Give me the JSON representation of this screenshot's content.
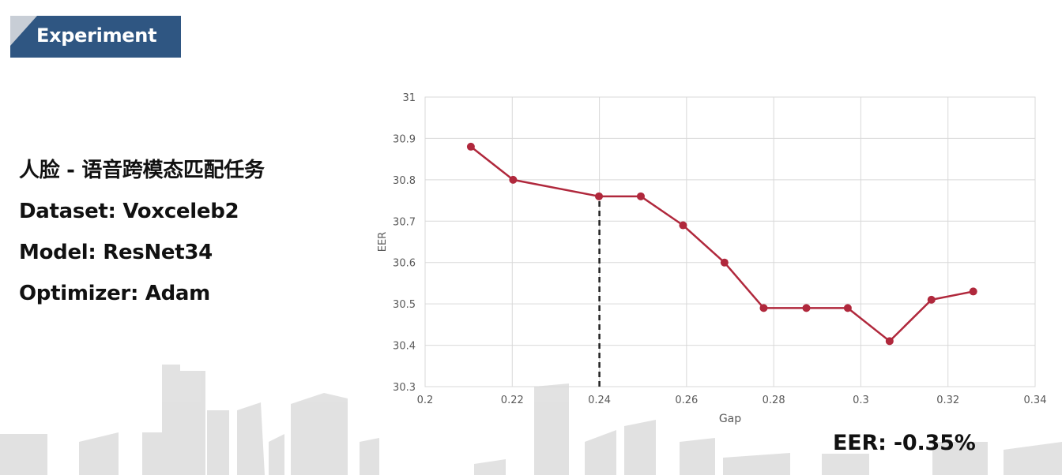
{
  "slide": {
    "section_title": "Experiment",
    "info_lines": [
      "人脸 - 语音跨模态匹配任务",
      "Dataset: Voxceleb2",
      "Model: ResNet34",
      "Optimizer: Adam"
    ],
    "result_text": "EER: -0.35%"
  },
  "colors": {
    "title_bar": "#2f5682",
    "series": "#b0283c",
    "grid": "#d9d9d9",
    "skyline": "#d8d8d8"
  },
  "chart_data": {
    "type": "line",
    "title": "",
    "xlabel": "Gap",
    "ylabel": "EER",
    "xlim": [
      0.2,
      0.34
    ],
    "ylim": [
      30.3,
      31
    ],
    "xticks": [
      "0.2",
      "0.22",
      "0.24",
      "0.26",
      "0.28",
      "0.3",
      "0.32",
      "0.34"
    ],
    "yticks": [
      "30.3",
      "30.4",
      "30.5",
      "30.6",
      "30.7",
      "30.8",
      "30.9",
      "31"
    ],
    "grid": true,
    "legend": "none",
    "series": [
      {
        "x": [
          0.2105,
          0.2202,
          0.2399,
          0.2495,
          0.2592,
          0.2687,
          0.2777,
          0.2875,
          0.297,
          0.3066,
          0.3162,
          0.3258
        ],
        "y": [
          30.88,
          30.8,
          30.76,
          30.76,
          30.69,
          30.6,
          30.49,
          30.49,
          30.49,
          30.41,
          30.51,
          30.53
        ]
      }
    ],
    "annotations": [
      {
        "type": "dashed-vertical",
        "x": 0.24,
        "y_from": 30.3,
        "y_to": 30.76
      }
    ]
  }
}
